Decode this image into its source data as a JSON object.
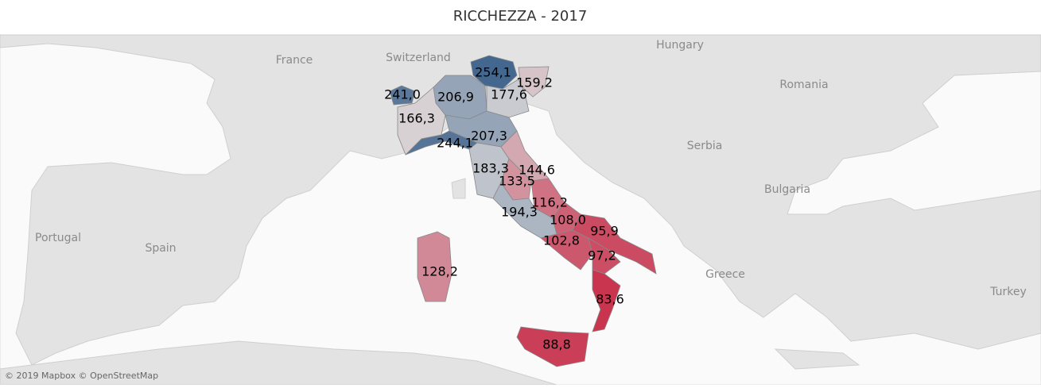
{
  "header": {
    "title": "RICCHEZZA - 2017"
  },
  "map": {
    "attribution": "© 2019 Mapbox © OpenStreetMap",
    "countries": [
      "France",
      "Switzerland",
      "Hungary",
      "Romania",
      "Serbia",
      "Bulgaria",
      "Portugal",
      "Spain",
      "Greece",
      "Turkey"
    ],
    "regions": [
      {
        "label": "241,0",
        "value": 241.0
      },
      {
        "label": "254,1",
        "value": 254.1
      },
      {
        "label": "159,2",
        "value": 159.2
      },
      {
        "label": "206,9",
        "value": 206.9
      },
      {
        "label": "177,6",
        "value": 177.6
      },
      {
        "label": "166,3",
        "value": 166.3
      },
      {
        "label": "207,3",
        "value": 207.3
      },
      {
        "label": "244,1",
        "value": 244.1
      },
      {
        "label": "183,3",
        "value": 183.3
      },
      {
        "label": "144,6",
        "value": 144.6
      },
      {
        "label": "133,5",
        "value": 133.5
      },
      {
        "label": "116,2",
        "value": 116.2
      },
      {
        "label": "194,3",
        "value": 194.3
      },
      {
        "label": "108,0",
        "value": 108.0
      },
      {
        "label": "95,9",
        "value": 95.9
      },
      {
        "label": "102,8",
        "value": 102.8
      },
      {
        "label": "97,2",
        "value": 97.2
      },
      {
        "label": "83,6",
        "value": 83.6
      },
      {
        "label": "88,8",
        "value": 88.8
      },
      {
        "label": "128,2",
        "value": 128.2
      }
    ]
  }
}
